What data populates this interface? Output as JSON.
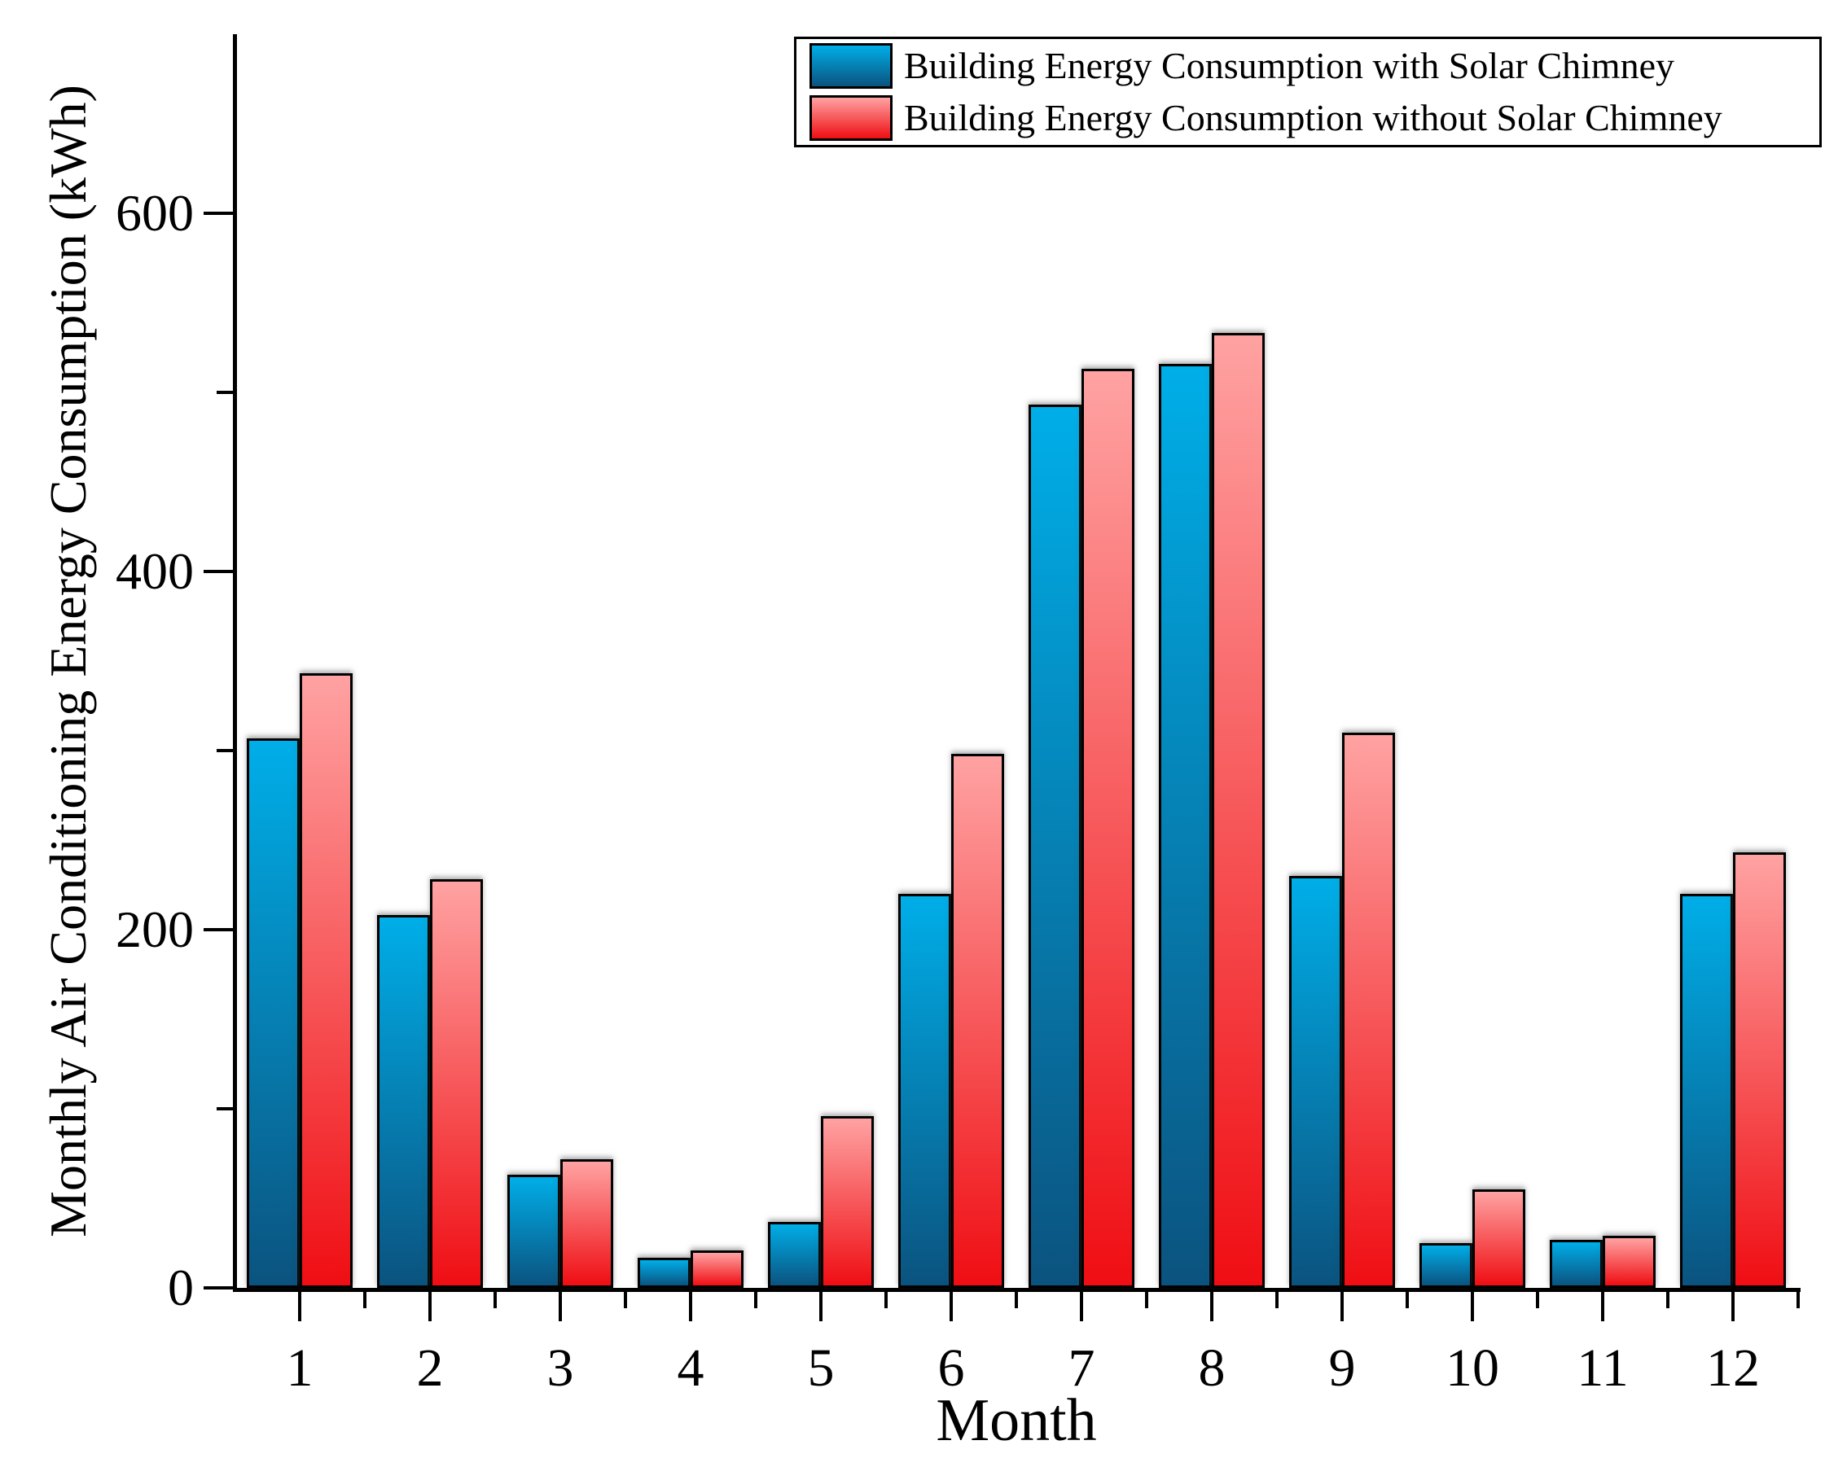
{
  "chart_data": {
    "type": "bar",
    "title": "",
    "xlabel": "Month",
    "ylabel": "Monthly Air Conditioning Energy Consumption (kWh)",
    "categories": [
      "1",
      "2",
      "3",
      "4",
      "5",
      "6",
      "7",
      "8",
      "9",
      "10",
      "11",
      "12"
    ],
    "series": [
      {
        "name": "Building Energy Consumption with Solar Chimney",
        "values": [
          307,
          208,
          63,
          17,
          37,
          220,
          493,
          516,
          230,
          25,
          27,
          220
        ],
        "gradient_top": "#00AEE8",
        "gradient_bottom": "#0B537F"
      },
      {
        "name": "Building Energy Consumption without Solar Chimney",
        "values": [
          343,
          228,
          72,
          21,
          96,
          298,
          513,
          533,
          310,
          55,
          29,
          243
        ],
        "gradient_top": "#FFA2A2",
        "gradient_bottom": "#EF0E13"
      }
    ],
    "ylim": [
      0,
      700
    ],
    "yticks_major": [
      0,
      200,
      400,
      600
    ],
    "yticks_minor": [
      100,
      300,
      500
    ],
    "xticks_minor_between_categories": true,
    "grid": false,
    "legend_position": "top-right",
    "axis_color": "#000000",
    "bar_border_color": "#000000",
    "background_color": "#FFFFFF"
  }
}
